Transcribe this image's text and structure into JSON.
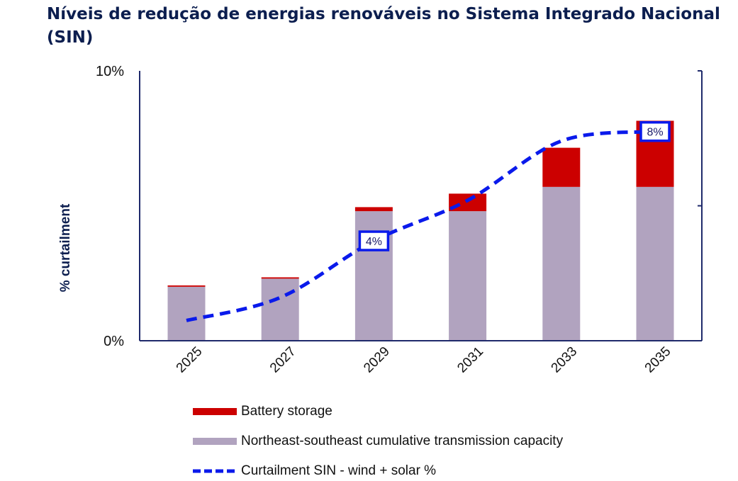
{
  "title": "Níveis de redução de energias renováveis no Sistema Integrado Nacional (SIN)",
  "colors": {
    "title": "#0c1e4f",
    "axis": "#1f2a6b",
    "battery": "#cc0000",
    "transmission": "#b1a3bf",
    "curtailment": "#0a1aeb"
  },
  "chart_data": {
    "type": "bar",
    "stacked": true,
    "categories": [
      "2025",
      "2027",
      "2029",
      "2031",
      "2033",
      "2035"
    ],
    "ylabel": "% curtailment",
    "ylim": [
      0,
      10
    ],
    "yticks": [
      {
        "value": 0,
        "label": "0%"
      },
      {
        "value": 10,
        "label": "10%"
      }
    ],
    "right_axis_ticks": [
      0,
      5,
      10
    ],
    "series": [
      {
        "name": "Northeast-southeast cumulative transmission capacity",
        "kind": "bar",
        "values": [
          2.0,
          2.3,
          4.8,
          4.8,
          5.7,
          5.7
        ]
      },
      {
        "name": "Battery storage",
        "kind": "bar",
        "values": [
          0.05,
          0.05,
          0.15,
          0.65,
          1.45,
          2.45
        ]
      },
      {
        "name": "Curtailment SIN - wind + solar %",
        "kind": "line",
        "values": [
          0.75,
          1.6,
          3.7,
          5.2,
          7.4,
          7.75
        ]
      }
    ],
    "annotations": [
      {
        "series": "Curtailment SIN - wind + solar %",
        "category": "2029",
        "label": "4%"
      },
      {
        "series": "Curtailment SIN - wind + solar %",
        "category": "2035",
        "label": "8%"
      }
    ],
    "legend_position": "bottom",
    "grid": false
  },
  "legend": [
    {
      "label": "Battery storage",
      "kind": "bar",
      "color": "#cc0000"
    },
    {
      "label": "Northeast-southeast cumulative transmission capacity",
      "kind": "bar",
      "color": "#b1a3bf"
    },
    {
      "label": "Curtailment SIN - wind + solar %",
      "kind": "line",
      "color": "#0a1aeb"
    }
  ]
}
